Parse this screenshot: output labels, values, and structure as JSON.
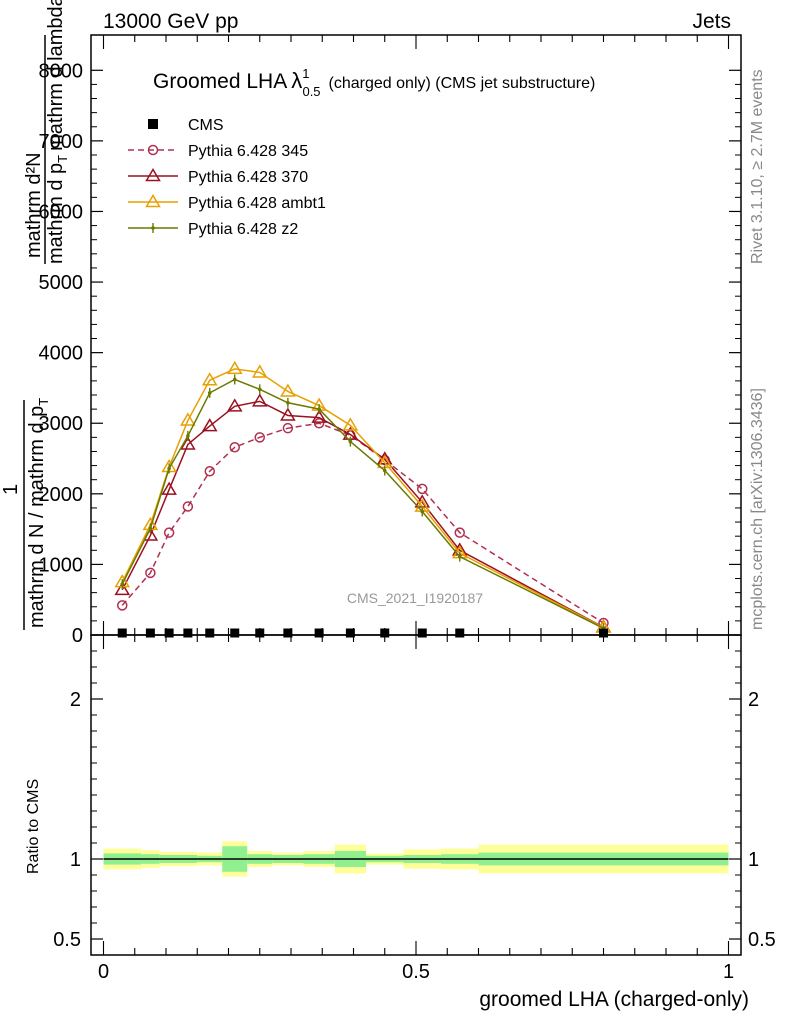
{
  "header": {
    "left": "13000 GeV pp",
    "right": "Jets"
  },
  "side_text": {
    "rivet": "Rivet 3.1.10, ≥ 2.7M events",
    "site": "mcplots.cern.ch [arXiv:1306.3436]"
  },
  "watermark": "CMS_2021_I1920187",
  "title": {
    "main": "Groomed LHA",
    "lambda": "λ",
    "sup": "1",
    "sub": "0.5",
    "rest": "(charged only) (CMS jet substructure)"
  },
  "main_ylabel": {
    "one": "1",
    "frac1_num": "mathrm d N",
    "frac1_den": "mathrm d N / mathrm d p",
    "frac2_num": "mathrm d",
    "frac2_num_sub": "T",
    "frac2_den": "mathrm d lambda",
    "frac_outer_num": "mathrm d",
    "frac_outer_sub": "T",
    "frac_outer_den": "mathrm d lambda"
  },
  "ylabel_lines": {
    "l1": "mathrm d²N",
    "l2": "mathrm d p",
    "l2_sub": "T",
    "l2_rest": "mathrm d lambda",
    "l3": "1",
    "l4": "mathrm d N / mathrm d p",
    "l4_sub": "T"
  },
  "ratio_ylabel": "Ratio to CMS",
  "xlabel": "groomed LHA (charged-only)",
  "legend": [
    {
      "label": "CMS",
      "color": "#000000",
      "marker": "square",
      "dash": "none"
    },
    {
      "label": "Pythia 6.428 345",
      "color": "#b03050",
      "marker": "circle",
      "dash": "dashed"
    },
    {
      "label": "Pythia 6.428 370",
      "color": "#9b1020",
      "marker": "triangle",
      "dash": "solid"
    },
    {
      "label": "Pythia 6.428 ambt1",
      "color": "#e8a000",
      "marker": "triangle",
      "dash": "solid"
    },
    {
      "label": "Pythia 6.428 z2",
      "color": "#6b7a00",
      "marker": "dot",
      "dash": "solid"
    }
  ],
  "chart_data": {
    "type": "line",
    "xlim": [
      -0.02,
      1.02
    ],
    "main": {
      "ylim": [
        0,
        8500
      ],
      "yticks": [
        0,
        1000,
        2000,
        3000,
        4000,
        5000,
        6000,
        7000,
        8000
      ],
      "ytick_labels": [
        "0",
        "1000",
        "2000",
        "3000",
        "4000",
        "5000",
        "6000",
        "7000",
        "8000"
      ]
    },
    "ratio": {
      "ylim": [
        0.4,
        2.4
      ],
      "yticks": [
        0.5,
        1,
        2
      ],
      "ytick_labels": [
        "0.5",
        "1",
        "2"
      ]
    },
    "xticks": [
      0,
      0.5,
      1
    ],
    "xtick_labels": [
      "0",
      "0.5",
      "1"
    ],
    "cms": {
      "x": [
        0.03,
        0.075,
        0.105,
        0.135,
        0.17,
        0.21,
        0.25,
        0.295,
        0.345,
        0.395,
        0.45,
        0.51,
        0.57,
        0.8
      ],
      "y": [
        0,
        0,
        0,
        0,
        0,
        0,
        0,
        0,
        0,
        0,
        0,
        0,
        0,
        0
      ]
    },
    "series": [
      {
        "name": "Pythia 6.428 345",
        "x": [
          0.03,
          0.075,
          0.105,
          0.135,
          0.17,
          0.21,
          0.25,
          0.295,
          0.345,
          0.395,
          0.45,
          0.51,
          0.57,
          0.8
        ],
        "y": [
          420,
          880,
          1450,
          1820,
          2320,
          2660,
          2800,
          2930,
          3000,
          2830,
          2480,
          2070,
          1450,
          170
        ]
      },
      {
        "name": "Pythia 6.428 370",
        "x": [
          0.03,
          0.075,
          0.105,
          0.135,
          0.17,
          0.21,
          0.25,
          0.295,
          0.345,
          0.395,
          0.45,
          0.51,
          0.57,
          0.8
        ],
        "y": [
          640,
          1410,
          2060,
          2700,
          2960,
          3240,
          3310,
          3110,
          3080,
          2840,
          2490,
          1880,
          1200,
          110
        ]
      },
      {
        "name": "Pythia 6.428 ambt1",
        "x": [
          0.03,
          0.075,
          0.105,
          0.135,
          0.17,
          0.21,
          0.25,
          0.295,
          0.345,
          0.395,
          0.45,
          0.51,
          0.57,
          0.8
        ],
        "y": [
          750,
          1560,
          2380,
          3040,
          3610,
          3770,
          3720,
          3450,
          3250,
          2970,
          2440,
          1820,
          1160,
          105
        ]
      },
      {
        "name": "Pythia 6.428 z2",
        "x": [
          0.03,
          0.075,
          0.105,
          0.135,
          0.17,
          0.21,
          0.25,
          0.295,
          0.345,
          0.395,
          0.45,
          0.51,
          0.57,
          0.8
        ],
        "y": [
          720,
          1510,
          2360,
          2820,
          3430,
          3620,
          3480,
          3290,
          3200,
          2740,
          2330,
          1750,
          1110,
          95
        ]
      }
    ],
    "ratio_bands": {
      "x_edges": [
        0.0,
        0.06,
        0.09,
        0.12,
        0.15,
        0.19,
        0.23,
        0.27,
        0.32,
        0.37,
        0.42,
        0.48,
        0.54,
        0.6,
        1.0
      ],
      "inner_half": [
        0.035,
        0.03,
        0.025,
        0.025,
        0.02,
        0.08,
        0.03,
        0.025,
        0.03,
        0.05,
        0.02,
        0.025,
        0.03,
        0.04
      ],
      "outer_half": [
        0.065,
        0.055,
        0.045,
        0.045,
        0.04,
        0.11,
        0.05,
        0.04,
        0.05,
        0.09,
        0.035,
        0.06,
        0.065,
        0.09
      ]
    }
  }
}
